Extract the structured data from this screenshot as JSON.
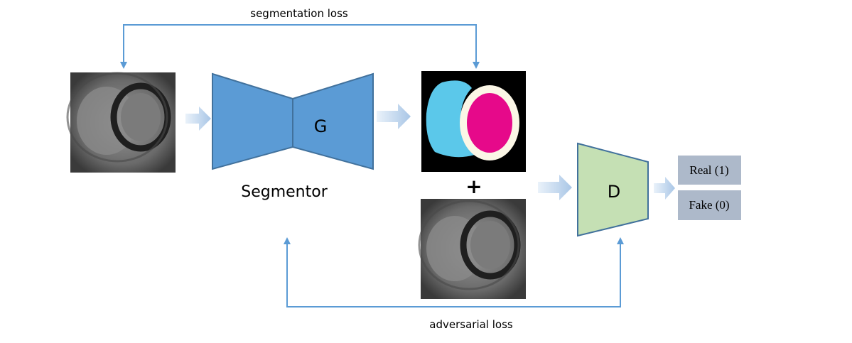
{
  "labels": {
    "segmentation_loss": "segmentation loss",
    "adversarial_loss": "adversarial loss",
    "segmentor": "Segmentor",
    "generator": "G",
    "discriminator": "D",
    "plus": "+",
    "real": "Real (1)",
    "fake": "Fake (0)"
  },
  "images": {
    "input_mri": "cardiac-mri-slice",
    "segmentation_mask": "segmentation-mask",
    "paired_mri": "cardiac-mri-slice"
  },
  "colors": {
    "loss_line": "#5b9bd5",
    "generator_fill": "#5b9bd5",
    "generator_stroke": "#41719c",
    "discriminator_fill": "#c5e0b4",
    "discriminator_stroke": "#41719c",
    "output_box": "#adb9ca",
    "mask_background": "#000000",
    "mask_right_ventricle": "#5bc8ea",
    "mask_myocardium": "#fbf6e6",
    "mask_left_ventricle": "#e6098a"
  }
}
